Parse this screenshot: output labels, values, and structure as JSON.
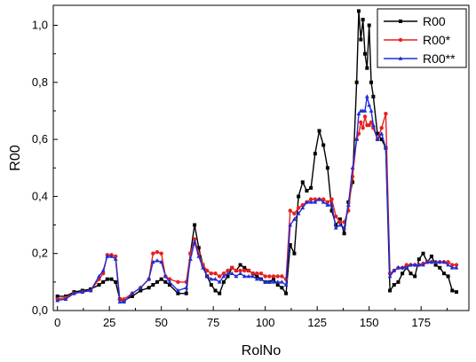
{
  "chart_data": {
    "type": "line",
    "title": "",
    "xlabel": "RolNo",
    "ylabel": "R00",
    "xlim": [
      -2,
      198
    ],
    "ylim": [
      0.0,
      1.07
    ],
    "xticks": [
      0,
      25,
      50,
      75,
      100,
      125,
      150,
      175
    ],
    "yticks": [
      0.0,
      0.2,
      0.4,
      0.6,
      0.8,
      1.0
    ],
    "xtick_labels": [
      "0",
      "25",
      "50",
      "75",
      "100",
      "125",
      "150",
      "175"
    ],
    "ytick_labels": [
      "0,0",
      "0,2",
      "0,4",
      "0,6",
      "0,8",
      "1,0"
    ],
    "grid": false,
    "legend_position": "top-right",
    "series": [
      {
        "name": "R00",
        "color": "#000000",
        "marker": "square",
        "x": [
          0,
          4,
          8,
          12,
          16,
          20,
          22,
          24,
          26,
          28,
          30,
          32,
          36,
          40,
          44,
          46,
          48,
          50,
          52,
          54,
          58,
          62,
          64,
          66,
          68,
          70,
          72,
          74,
          76,
          78,
          80,
          82,
          84,
          86,
          88,
          90,
          92,
          94,
          96,
          98,
          100,
          102,
          104,
          106,
          108,
          110,
          112,
          114,
          116,
          118,
          120,
          122,
          124,
          126,
          128,
          130,
          132,
          134,
          136,
          138,
          140,
          142,
          144,
          145,
          146,
          147,
          148,
          149,
          150,
          151,
          152,
          154,
          156,
          158,
          160,
          162,
          164,
          166,
          168,
          170,
          172,
          174,
          176,
          178,
          180,
          182,
          184,
          186,
          188,
          190,
          192
        ],
        "values": [
          0.05,
          0.05,
          0.065,
          0.07,
          0.075,
          0.09,
          0.1,
          0.11,
          0.11,
          0.1,
          0.04,
          0.035,
          0.05,
          0.07,
          0.08,
          0.09,
          0.1,
          0.11,
          0.1,
          0.09,
          0.06,
          0.06,
          0.2,
          0.3,
          0.22,
          0.16,
          0.12,
          0.09,
          0.07,
          0.06,
          0.1,
          0.12,
          0.15,
          0.14,
          0.16,
          0.15,
          0.14,
          0.13,
          0.12,
          0.11,
          0.1,
          0.1,
          0.11,
          0.09,
          0.08,
          0.06,
          0.23,
          0.2,
          0.4,
          0.45,
          0.42,
          0.43,
          0.55,
          0.63,
          0.58,
          0.5,
          0.35,
          0.3,
          0.32,
          0.27,
          0.38,
          0.45,
          0.8,
          1.05,
          0.95,
          1.02,
          0.9,
          0.85,
          1.0,
          0.8,
          0.75,
          0.62,
          0.6,
          0.57,
          0.07,
          0.09,
          0.1,
          0.13,
          0.15,
          0.13,
          0.12,
          0.18,
          0.2,
          0.17,
          0.19,
          0.16,
          0.15,
          0.13,
          0.12,
          0.07,
          0.065
        ]
      },
      {
        "name": "R00*",
        "color": "#e8201e",
        "marker": "circle",
        "x": [
          0,
          4,
          8,
          12,
          16,
          20,
          22,
          24,
          26,
          28,
          30,
          32,
          36,
          40,
          44,
          46,
          48,
          50,
          52,
          54,
          58,
          62,
          64,
          66,
          68,
          70,
          72,
          74,
          76,
          78,
          80,
          82,
          84,
          86,
          88,
          90,
          92,
          94,
          96,
          98,
          100,
          102,
          104,
          106,
          108,
          110,
          112,
          114,
          116,
          118,
          120,
          122,
          124,
          126,
          128,
          130,
          132,
          134,
          136,
          138,
          140,
          142,
          144,
          145,
          146,
          147,
          148,
          149,
          150,
          151,
          152,
          154,
          156,
          158,
          160,
          162,
          164,
          166,
          168,
          170,
          172,
          174,
          176,
          178,
          180,
          182,
          184,
          186,
          188,
          190,
          192
        ],
        "values": [
          0.04,
          0.045,
          0.06,
          0.065,
          0.07,
          0.11,
          0.13,
          0.195,
          0.195,
          0.19,
          0.04,
          0.04,
          0.06,
          0.08,
          0.11,
          0.2,
          0.205,
          0.2,
          0.12,
          0.11,
          0.1,
          0.1,
          0.2,
          0.25,
          0.2,
          0.16,
          0.14,
          0.13,
          0.13,
          0.12,
          0.13,
          0.14,
          0.15,
          0.14,
          0.14,
          0.14,
          0.14,
          0.13,
          0.13,
          0.13,
          0.12,
          0.12,
          0.12,
          0.12,
          0.12,
          0.11,
          0.35,
          0.34,
          0.36,
          0.37,
          0.38,
          0.39,
          0.39,
          0.39,
          0.39,
          0.38,
          0.39,
          0.33,
          0.31,
          0.31,
          0.35,
          0.47,
          0.6,
          0.62,
          0.66,
          0.64,
          0.68,
          0.65,
          0.65,
          0.66,
          0.64,
          0.6,
          0.64,
          0.69,
          0.13,
          0.14,
          0.15,
          0.15,
          0.16,
          0.16,
          0.16,
          0.16,
          0.165,
          0.17,
          0.17,
          0.17,
          0.17,
          0.17,
          0.17,
          0.16,
          0.16
        ]
      },
      {
        "name": "R00**",
        "color": "#1f2dd6",
        "marker": "triangle",
        "x": [
          0,
          4,
          8,
          12,
          16,
          20,
          22,
          24,
          26,
          28,
          30,
          32,
          36,
          40,
          44,
          46,
          48,
          50,
          52,
          54,
          58,
          62,
          64,
          66,
          68,
          70,
          72,
          74,
          76,
          78,
          80,
          82,
          84,
          86,
          88,
          90,
          92,
          94,
          96,
          98,
          100,
          102,
          104,
          106,
          108,
          110,
          112,
          114,
          116,
          118,
          120,
          122,
          124,
          126,
          128,
          130,
          132,
          134,
          136,
          138,
          140,
          142,
          144,
          145,
          146,
          147,
          148,
          149,
          150,
          151,
          152,
          154,
          156,
          158,
          160,
          162,
          164,
          166,
          168,
          170,
          172,
          174,
          176,
          178,
          180,
          182,
          184,
          186,
          188,
          190,
          192
        ],
        "values": [
          0.035,
          0.04,
          0.06,
          0.065,
          0.07,
          0.12,
          0.14,
          0.19,
          0.19,
          0.18,
          0.03,
          0.03,
          0.06,
          0.08,
          0.11,
          0.17,
          0.175,
          0.17,
          0.12,
          0.1,
          0.07,
          0.08,
          0.18,
          0.24,
          0.19,
          0.15,
          0.12,
          0.11,
          0.11,
          0.1,
          0.12,
          0.13,
          0.13,
          0.12,
          0.13,
          0.12,
          0.12,
          0.12,
          0.11,
          0.11,
          0.1,
          0.1,
          0.1,
          0.1,
          0.1,
          0.09,
          0.3,
          0.32,
          0.34,
          0.36,
          0.38,
          0.38,
          0.38,
          0.39,
          0.38,
          0.37,
          0.37,
          0.29,
          0.3,
          0.29,
          0.37,
          0.5,
          0.6,
          0.69,
          0.7,
          0.7,
          0.7,
          0.75,
          0.72,
          0.7,
          0.65,
          0.6,
          0.62,
          0.57,
          0.12,
          0.14,
          0.15,
          0.15,
          0.15,
          0.16,
          0.16,
          0.16,
          0.16,
          0.17,
          0.17,
          0.17,
          0.17,
          0.17,
          0.16,
          0.15,
          0.15
        ]
      }
    ]
  }
}
